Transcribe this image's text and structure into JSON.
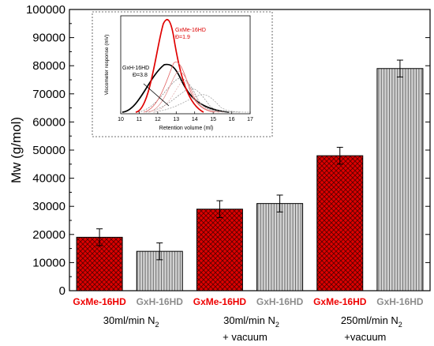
{
  "chart_data": {
    "type": "bar",
    "ylabel": "Mw (g/mol)",
    "ylim": [
      0,
      100000
    ],
    "ytick_step": 10000,
    "ytick_labels": [
      "0",
      "10000",
      "20000",
      "30000",
      "40000",
      "50000",
      "60000",
      "70000",
      "80000",
      "90000",
      "100000"
    ],
    "bars": [
      {
        "label": "GxMe-16HD",
        "value": 19000,
        "error": 3000,
        "color": "#dd0000",
        "pattern": "crosshatch"
      },
      {
        "label": "GxH-16HD",
        "value": 14000,
        "error": 3000,
        "color": "#c0c0c0",
        "pattern": "vertical"
      },
      {
        "label": "GxMe-16HD",
        "value": 29000,
        "error": 3000,
        "color": "#dd0000",
        "pattern": "crosshatch"
      },
      {
        "label": "GxH-16HD",
        "value": 31000,
        "error": 3000,
        "color": "#c0c0c0",
        "pattern": "vertical"
      },
      {
        "label": "GxMe-16HD",
        "value": 48000,
        "error": 3000,
        "color": "#dd0000",
        "pattern": "crosshatch"
      },
      {
        "label": "GxH-16HD",
        "value": 79000,
        "error": 3000,
        "color": "#c0c0c0",
        "pattern": "vertical"
      }
    ],
    "label_colors": {
      "GxMe-16HD": "#ee0000",
      "GxH-16HD": "#8c8c8c"
    },
    "groups": [
      {
        "line1": "30ml/min N",
        "sub": "2",
        "line2": ""
      },
      {
        "line1": "30ml/min N",
        "sub": "2",
        "line2": "+ vacuum"
      },
      {
        "line1": "250ml/min N",
        "sub": "2",
        "line2": "+vacuum"
      }
    ],
    "inset": {
      "type": "line",
      "xlabel": "Retention volume (ml)",
      "ylabel": "Viscometer response (mV)",
      "xlim": [
        10,
        17
      ],
      "xticks": [
        "10",
        "11",
        "12",
        "13",
        "14",
        "15",
        "16",
        "17"
      ],
      "annotations": [
        {
          "lines": [
            "GxMe-16HD",
            "Đ=1.9"
          ],
          "color": "#dd0000"
        },
        {
          "lines": [
            "GxH-16HD",
            "Đ=3.8"
          ],
          "color": "#000000"
        }
      ]
    }
  }
}
